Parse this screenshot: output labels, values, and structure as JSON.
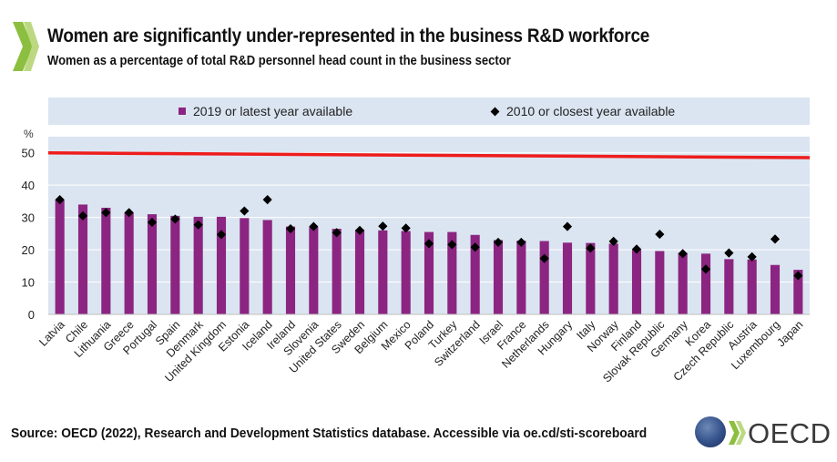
{
  "header": {
    "title": "Women are significantly under-represented in the business R&D workforce",
    "subtitle": "Women as a percentage of total R&D personnel head count in the business sector"
  },
  "footer": {
    "source": "Source: OECD (2022), Research and Development Statistics database. Accessible via oe.cd/sti-scoreboard"
  },
  "logo": {
    "text": "OECD"
  },
  "colors": {
    "bar": "#8b2581",
    "marker": "#000000",
    "reference_line": "#ee1c1c",
    "legend_bg": "#dbe5f1",
    "grid": "#d9d9d9",
    "chevron": "#8cbf3f"
  },
  "chart_data": {
    "type": "bar",
    "unit_label": "%",
    "ylim": [
      0,
      55
    ],
    "yticks": [
      0,
      10,
      20,
      30,
      40,
      50
    ],
    "grid": true,
    "legend_position": "top",
    "reference_line": {
      "start": 50,
      "end": 48.5
    },
    "categories": [
      "Latvia",
      "Chile",
      "Lithuania",
      "Greece",
      "Portugal",
      "Spain",
      "Denmark",
      "United Kingdom",
      "Estonia",
      "Iceland",
      "Ireland",
      "Slovenia",
      "United States",
      "Sweden",
      "Belgium",
      "Mexico",
      "Poland",
      "Turkey",
      "Switzerland",
      "Israel",
      "France",
      "Netherlands",
      "Hungary",
      "Italy",
      "Norway",
      "Finland",
      "Slovak Republic",
      "Germany",
      "Korea",
      "Czech Republic",
      "Austria",
      "Luxembourg",
      "Japan"
    ],
    "series": [
      {
        "name": "2019 or latest year available",
        "type": "bar",
        "values": [
          35.5,
          34,
          33,
          31.5,
          31,
          30.5,
          30.2,
          30.2,
          29.8,
          29.2,
          27.2,
          27,
          26.5,
          26.2,
          26,
          25.8,
          25.5,
          25.5,
          24.6,
          23,
          22.8,
          22.7,
          22.2,
          22.1,
          21.9,
          20.1,
          19.6,
          19,
          18.8,
          17.1,
          17,
          15.3,
          13.8
        ]
      },
      {
        "name": "2010 or closest year available",
        "type": "scatter",
        "values": [
          35.5,
          30.5,
          31.5,
          31.5,
          28.5,
          29.5,
          27.7,
          24.7,
          32,
          35.5,
          26.5,
          27.2,
          25.3,
          26,
          27.3,
          26.7,
          21.9,
          21.6,
          20.8,
          22.3,
          22.3,
          17.3,
          27.2,
          20.5,
          22.6,
          20.2,
          24.8,
          18.8,
          14,
          19,
          17.8,
          23.3,
          12
        ]
      }
    ]
  }
}
